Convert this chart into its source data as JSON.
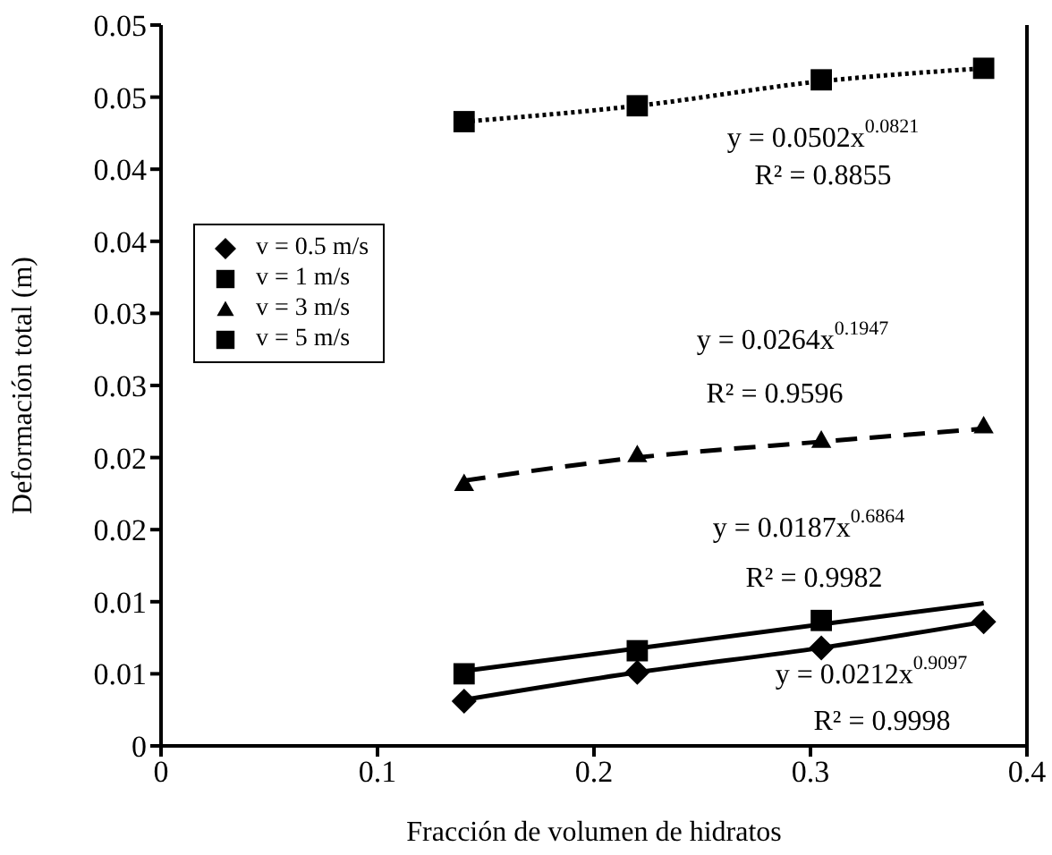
{
  "chart_data": {
    "type": "scatter",
    "xlabel": "Fracción de volumen de hidratos",
    "ylabel": "Deformación total (m)",
    "xlim": [
      0,
      0.4
    ],
    "xticks": [
      0,
      0.1,
      0.2,
      0.3,
      0.4
    ],
    "ylim": [
      0,
      0.05
    ],
    "yticks": [
      0,
      {
        "value": 0.005,
        "label": "0.01"
      },
      0.01,
      {
        "value": 0.015,
        "label": "0.02"
      },
      0.02,
      {
        "value": 0.025,
        "label": "0.03"
      },
      0.03,
      {
        "value": 0.035,
        "label": "0.04"
      },
      0.04,
      {
        "value": 0.045,
        "label": "0.05"
      },
      0.05
    ],
    "grid": false,
    "legend": "left",
    "series": [
      {
        "name": "v = 0.5 m/s",
        "type": "scatter",
        "marker": "diamond",
        "color": "#000000",
        "x": [
          0.14,
          0.22,
          0.305,
          0.38
        ],
        "values": [
          0.0031,
          0.0051,
          0.0068,
          0.0086
        ]
      },
      {
        "name": "v = 1 m/s",
        "type": "scatter",
        "marker": "square",
        "color": "#000000",
        "x": [
          0.14,
          0.22,
          0.305
        ],
        "values": [
          0.005,
          0.0066,
          0.0087
        ]
      },
      {
        "name": "v = 3 m/s",
        "type": "scatter",
        "marker": "triangle",
        "color": "#000000",
        "x": [
          0.14,
          0.22,
          0.305,
          0.38
        ],
        "values": [
          0.0182,
          0.0202,
          0.0212,
          0.0222
        ]
      },
      {
        "name": "v = 5 m/s",
        "type": "scatter",
        "marker": "square",
        "color": "#000000",
        "x": [
          0.14,
          0.22,
          0.305,
          0.38
        ],
        "values": [
          0.0433,
          0.0444,
          0.0462,
          0.047
        ]
      },
      {
        "type": "line",
        "marker": "none",
        "line_style": "solid",
        "color": "#000000",
        "x": [
          0.14,
          0.22,
          0.305,
          0.38
        ],
        "values": [
          0.0032,
          0.0051,
          0.0068,
          0.0086
        ]
      },
      {
        "type": "line",
        "marker": "none",
        "line_style": "solid",
        "color": "#000000",
        "x": [
          0.14,
          0.38
        ],
        "values": [
          0.0052,
          0.0099
        ]
      },
      {
        "type": "line",
        "marker": "none",
        "line_style": "dashed",
        "color": "#000000",
        "x": [
          0.14,
          0.22,
          0.305,
          0.38
        ],
        "values": [
          0.0184,
          0.02,
          0.0211,
          0.022
        ]
      },
      {
        "type": "line",
        "marker": "none",
        "line_style": "dotted",
        "color": "#000000",
        "x": [
          0.14,
          0.22,
          0.305,
          0.38
        ],
        "values": [
          0.0433,
          0.0444,
          0.0461,
          0.047
        ]
      }
    ],
    "annotations": [
      "y = 0.0502x$^{0.0821}$",
      "R² = 0.8855",
      "y = 0.0264x$^{0.1947}$",
      "R² = 0.9596",
      "y = 0.0187x$^{0.6864}$",
      "R² = 0.9982",
      "y = 0.0212x$^{0.9097}$",
      "R² = 0.9998"
    ]
  }
}
